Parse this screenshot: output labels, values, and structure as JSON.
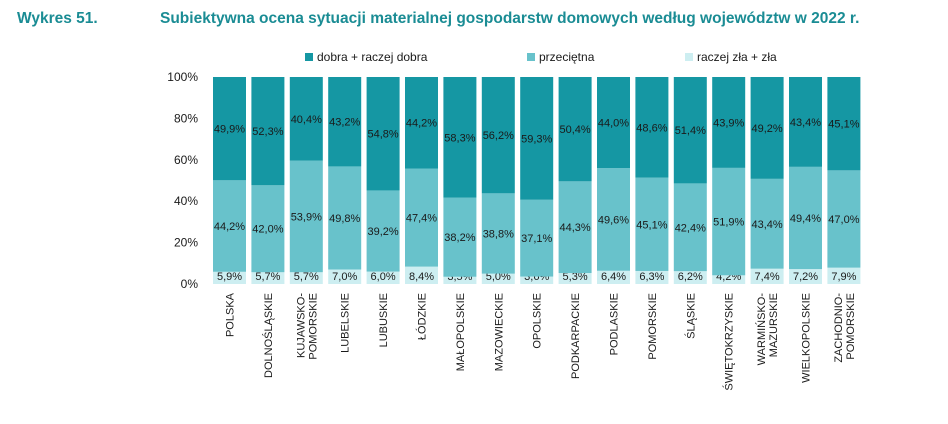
{
  "header": {
    "figure_number": "Wykres 51.",
    "title": "Subiektywna ocena sytuacji materialnej gospodarstw domowych według województw w 2022 r."
  },
  "colors": {
    "title": "#1a8c94",
    "series": [
      "#1597a3",
      "#68c2cb",
      "#cdeef1"
    ]
  },
  "chart_data": {
    "type": "bar",
    "stacked": true,
    "title": "Subiektywna ocena sytuacji materialnej gospodarstw domowych według województw w 2022 r.",
    "categories": [
      [
        "POLSKA"
      ],
      [
        "DOLNOŚLĄSKIE"
      ],
      [
        "KUJAWSKO-",
        "POMORSKIE"
      ],
      [
        "LUBELSKIE"
      ],
      [
        "LUBUSKIE"
      ],
      [
        "ŁÓDZKIE"
      ],
      [
        "MAŁOPOLSKIE"
      ],
      [
        "MAZOWIECKIE"
      ],
      [
        "OPOLSKIE"
      ],
      [
        "PODKARPACKIE"
      ],
      [
        "PODLASKIE"
      ],
      [
        "POMORSKIE"
      ],
      [
        "ŚLĄSKIE"
      ],
      [
        "ŚWIĘTOKRZYSKIE"
      ],
      [
        "WARMIŃSKO-",
        "MAZURSKIE"
      ],
      [
        "WIELKOPOLSKIE"
      ],
      [
        "ZACHODNIO-",
        "POMORSKIE"
      ]
    ],
    "series": [
      {
        "name": "raczej zła + zła",
        "values": [
          5.9,
          5.7,
          5.7,
          7.0,
          6.0,
          8.4,
          3.5,
          5.0,
          3.6,
          5.3,
          6.4,
          6.3,
          6.2,
          4.2,
          7.4,
          7.2,
          7.9
        ],
        "labels": [
          "5,9%",
          "5,7%",
          "5,7%",
          "7,0%",
          "6,0%",
          "8,4%",
          "3,5%",
          "5,0%",
          "3,6%",
          "5,3%",
          "6,4%",
          "6,3%",
          "6,2%",
          "4,2%",
          "7,4%",
          "7,2%",
          "7,9%"
        ]
      },
      {
        "name": "przeciętna",
        "values": [
          44.2,
          42.0,
          53.9,
          49.8,
          39.2,
          47.4,
          38.2,
          38.8,
          37.1,
          44.3,
          49.6,
          45.1,
          42.4,
          51.9,
          43.4,
          49.4,
          47.0
        ],
        "labels": [
          "44,2%",
          "42,0%",
          "53,9%",
          "49,8%",
          "39,2%",
          "47,4%",
          "38,2%",
          "38,8%",
          "37,1%",
          "44,3%",
          "49,6%",
          "45,1%",
          "42,4%",
          "51,9%",
          "43,4%",
          "49,4%",
          "47,0%"
        ]
      },
      {
        "name": "dobra + raczej dobra",
        "values": [
          49.9,
          52.3,
          40.4,
          43.2,
          54.8,
          44.2,
          58.3,
          56.2,
          59.3,
          50.4,
          44.0,
          48.6,
          51.4,
          43.9,
          49.2,
          43.4,
          45.1
        ],
        "labels": [
          "49,9%",
          "52,3%",
          "40,4%",
          "43,2%",
          "54,8%",
          "44,2%",
          "58,3%",
          "56,2%",
          "59,3%",
          "50,4%",
          "44,0%",
          "48,6%",
          "51,4%",
          "43,9%",
          "49,2%",
          "43,4%",
          "45,1%"
        ]
      }
    ],
    "legend": [
      "dobra + raczej dobra",
      "przeciętna",
      "raczej zła + zła"
    ],
    "legend_position": "top",
    "y_ticks": [
      "0%",
      "20%",
      "40%",
      "60%",
      "80%",
      "100%"
    ],
    "ylim": [
      0,
      100
    ],
    "grid": false
  }
}
